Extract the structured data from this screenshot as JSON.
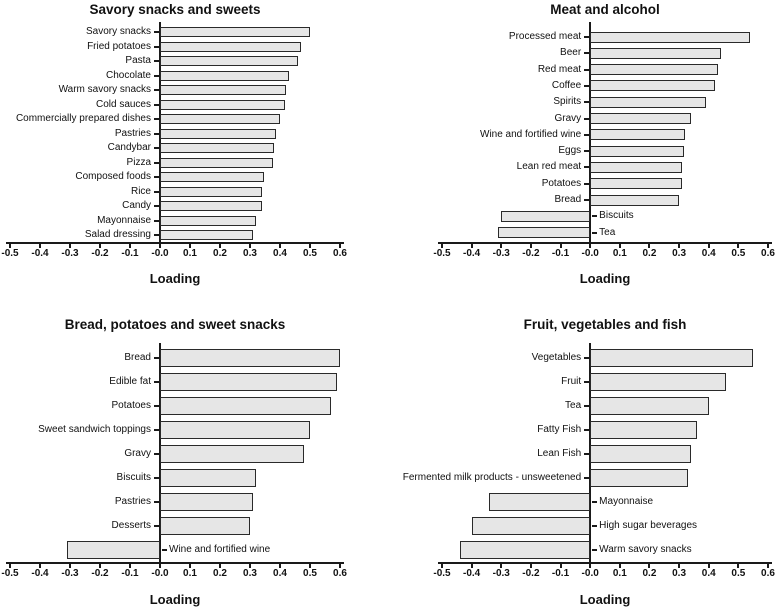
{
  "figure": {
    "description": "Four-panel horizontal bar figure of dietary pattern factor loadings",
    "colors": {
      "background": "#ffffff",
      "bar_fill": "#e6e6e6",
      "bar_border": "#2a2a2a",
      "axis": "#1a1a1a",
      "text": "#111111"
    }
  },
  "chart_data": [
    {
      "type": "bar",
      "orientation": "horizontal",
      "title": "Savory snacks and sweets",
      "xlabel": "Loading",
      "xlim": [
        -0.5,
        0.6
      ],
      "grid": false,
      "legend": "none",
      "xticks": [
        "-0.5",
        "-0.4",
        "-0.3",
        "-0.2",
        "-0.1",
        "-0.0",
        "0.1",
        "0.2",
        "0.3",
        "0.4",
        "0.5",
        "0.6"
      ],
      "categories": [
        "Savory snacks",
        "Fried potatoes",
        "Pasta",
        "Chocolate",
        "Warm savory snacks",
        "Cold sauces",
        "Commercially prepared dishes",
        "Pastries",
        "Candybar",
        "Pizza",
        "Composed foods",
        "Rice",
        "Candy",
        "Mayonnaise",
        "Salad dressing"
      ],
      "values": [
        0.5,
        0.47,
        0.46,
        0.43,
        0.42,
        0.415,
        0.4,
        0.385,
        0.38,
        0.375,
        0.345,
        0.34,
        0.34,
        0.32,
        0.31
      ]
    },
    {
      "type": "bar",
      "orientation": "horizontal",
      "title": "Meat and alcohol",
      "xlabel": "Loading",
      "xlim": [
        -0.5,
        0.6
      ],
      "grid": false,
      "legend": "none",
      "xticks": [
        "-0.5",
        "-0.4",
        "-0.3",
        "-0.2",
        "-0.1",
        "-0.0",
        "0.1",
        "0.2",
        "0.3",
        "0.4",
        "0.5",
        "0.6"
      ],
      "categories": [
        "Processed meat",
        "Beer",
        "Red meat",
        "Coffee",
        "Spirits",
        "Gravy",
        "Wine and fortified wine",
        "Eggs",
        "Lean red meat",
        "Potatoes",
        "Bread",
        "Biscuits",
        "Tea"
      ],
      "values": [
        0.54,
        0.44,
        0.43,
        0.42,
        0.39,
        0.34,
        0.32,
        0.315,
        0.31,
        0.31,
        0.3,
        -0.3,
        -0.31
      ]
    },
    {
      "type": "bar",
      "orientation": "horizontal",
      "title": "Bread, potatoes and sweet snacks",
      "xlabel": "Loading",
      "xlim": [
        -0.5,
        0.6
      ],
      "grid": false,
      "legend": "none",
      "xticks": [
        "-0.5",
        "-0.4",
        "-0.3",
        "-0.2",
        "-0.1",
        "-0.0",
        "0.1",
        "0.2",
        "0.3",
        "0.4",
        "0.5",
        "0.6"
      ],
      "categories": [
        "Bread",
        "Edible fat",
        "Potatoes",
        "Sweet sandwich toppings",
        "Gravy",
        "Biscuits",
        "Pastries",
        "Desserts",
        "Wine and fortified wine"
      ],
      "values": [
        0.6,
        0.59,
        0.57,
        0.5,
        0.48,
        0.32,
        0.31,
        0.3,
        -0.31
      ]
    },
    {
      "type": "bar",
      "orientation": "horizontal",
      "title": "Fruit, vegetables and fish",
      "xlabel": "Loading",
      "xlim": [
        -0.5,
        0.6
      ],
      "grid": false,
      "legend": "none",
      "xticks": [
        "-0.5",
        "-0.4",
        "-0.3",
        "-0.2",
        "-0.1",
        "-0.0",
        "0.1",
        "0.2",
        "0.3",
        "0.4",
        "0.5",
        "0.6"
      ],
      "categories": [
        "Vegetables",
        "Fruit",
        "Tea",
        "Fatty Fish",
        "Lean Fish",
        "Fermented milk products - unsweetened",
        "Mayonnaise",
        "High sugar beverages",
        "Warm savory snacks"
      ],
      "values": [
        0.55,
        0.46,
        0.4,
        0.36,
        0.34,
        0.33,
        -0.34,
        -0.4,
        -0.44
      ]
    }
  ]
}
